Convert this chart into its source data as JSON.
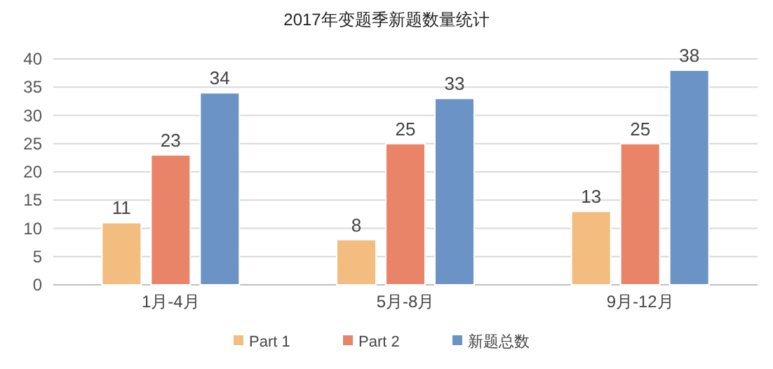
{
  "chart_data": {
    "type": "bar",
    "title": "2017年变题季新题数量统计",
    "categories": [
      "1月-4月",
      "5月-8月",
      "9月-12月"
    ],
    "series": [
      {
        "name": "Part 1",
        "color": "#f2bd7e",
        "values": [
          11,
          8,
          13
        ]
      },
      {
        "name": "Part 2",
        "color": "#ea8468",
        "values": [
          23,
          25,
          25
        ]
      },
      {
        "name": "新题总数",
        "color": "#6b93c6",
        "values": [
          34,
          33,
          38
        ]
      }
    ],
    "ylim": [
      0,
      40
    ],
    "yticks": [
      0,
      5,
      10,
      15,
      20,
      25,
      30,
      35,
      40
    ],
    "grid": "y",
    "legend": "bottom",
    "data_labels": true
  }
}
